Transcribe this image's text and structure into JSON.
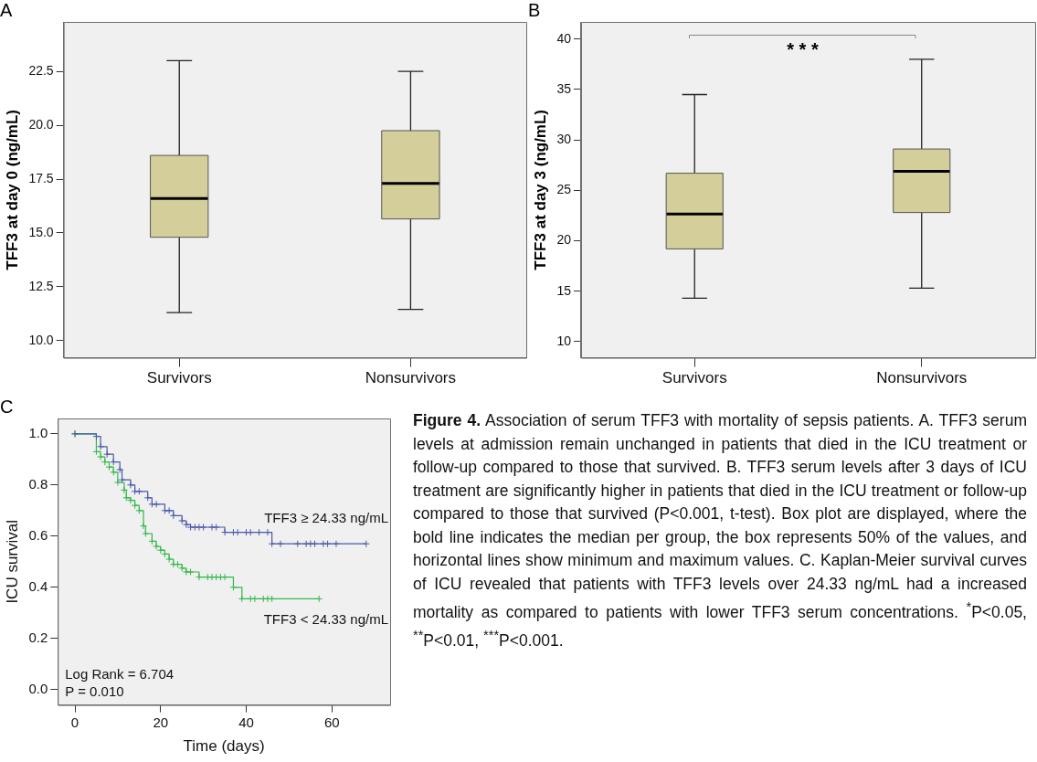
{
  "chart_data": [
    {
      "type": "box",
      "title": "A",
      "ylabel": "TFF3 at day 0 (ng/mL)",
      "categories": [
        "Survivors",
        "Nonsurvivors"
      ],
      "color": "#d4cf9a",
      "ylim": [
        9.2,
        24.8
      ],
      "yticks": [
        {
          "value": 10,
          "label": "10.0"
        },
        {
          "value": 12.5,
          "label": "12.5"
        },
        {
          "value": 15,
          "label": "15.0"
        },
        {
          "value": 17.5,
          "label": "17.5"
        },
        {
          "value": 20,
          "label": "20.0"
        },
        {
          "value": 22.5,
          "label": "22.5"
        }
      ],
      "boxes": [
        {
          "low": 11.3,
          "q1": 14.8,
          "median": 16.6,
          "q3": 18.6,
          "high": 23.0
        },
        {
          "low": 11.45,
          "q1": 15.65,
          "median": 17.3,
          "q3": 19.75,
          "high": 22.5
        }
      ]
    },
    {
      "type": "box",
      "title": "B",
      "ylabel": "TFF3 at day 3 (ng/mL)",
      "categories": [
        "Survivors",
        "Nonsurvivors"
      ],
      "color": "#d4cf9a",
      "ylim": [
        8.4,
        41.7
      ],
      "yticks": [
        10,
        15,
        20,
        25,
        30,
        35,
        40
      ],
      "boxes": [
        {
          "low": 14.3,
          "q1": 19.2,
          "median": 22.65,
          "q3": 26.7,
          "high": 34.5
        },
        {
          "low": 15.3,
          "q1": 22.8,
          "median": 26.9,
          "q3": 29.1,
          "high": 38.0
        }
      ],
      "annotations": [
        "* * *"
      ]
    },
    {
      "type": "step",
      "title": "C",
      "xlabel": "Time (days)",
      "ylabel": "ICU survival",
      "xlim": [
        -4,
        73.6
      ],
      "ylim": [
        -0.06,
        1.06
      ],
      "xticks": [
        0,
        20,
        40,
        60
      ],
      "yticks": [
        {
          "value": 0,
          "label": "0.0"
        },
        {
          "value": 0.2,
          "label": "0.2"
        },
        {
          "value": 0.4,
          "label": "0.4"
        },
        {
          "value": 0.6,
          "label": "0.6"
        },
        {
          "value": 0.8,
          "label": "0.8"
        },
        {
          "value": 1,
          "label": "1.0"
        }
      ],
      "marker": "cross",
      "legend": false,
      "series": [
        {
          "name": "TFF3 ≥ 24.33 ng/mL",
          "color": "#4a5aa8",
          "x": [
            0,
            5,
            6,
            7.5,
            9,
            10.5,
            11,
            13,
            14,
            15,
            17,
            18,
            19,
            21,
            22,
            23,
            25,
            26,
            27,
            28,
            29,
            30,
            32,
            33,
            35,
            37,
            38,
            40,
            41,
            43,
            45,
            46,
            48,
            52,
            54,
            55,
            56,
            58,
            59,
            61,
            68
          ],
          "values": [
            1,
            0.99,
            0.95,
            0.92,
            0.89,
            0.86,
            0.82,
            0.8,
            0.775,
            0.775,
            0.75,
            0.725,
            0.725,
            0.7,
            0.7,
            0.68,
            0.66,
            0.645,
            0.635,
            0.635,
            0.635,
            0.635,
            0.635,
            0.635,
            0.615,
            0.615,
            0.615,
            0.615,
            0.615,
            0.615,
            0.615,
            0.57,
            0.57,
            0.57,
            0.57,
            0.57,
            0.57,
            0.57,
            0.57,
            0.57,
            0.57
          ]
        },
        {
          "name": "TFF3 < 24.33 ng/mL",
          "color": "#33b84a",
          "x": [
            0,
            5,
            6,
            7,
            8,
            9,
            10,
            11.5,
            12,
            13,
            14,
            15,
            16,
            16.5,
            18,
            19,
            20,
            21,
            22,
            23,
            24,
            25,
            26,
            27,
            29,
            31,
            32,
            33,
            34,
            35,
            37,
            39,
            41,
            42,
            44,
            45,
            46,
            57
          ],
          "values": [
            1,
            0.93,
            0.91,
            0.89,
            0.87,
            0.85,
            0.81,
            0.78,
            0.75,
            0.74,
            0.72,
            0.7,
            0.64,
            0.61,
            0.58,
            0.56,
            0.545,
            0.53,
            0.51,
            0.49,
            0.49,
            0.475,
            0.46,
            0.46,
            0.44,
            0.44,
            0.44,
            0.44,
            0.44,
            0.44,
            0.4,
            0.355,
            0.355,
            0.355,
            0.355,
            0.355,
            0.355,
            0.355
          ]
        }
      ],
      "annotations": [
        "Log Rank = 6.704",
        "P = 0.010"
      ]
    },
    {
      "type": "other",
      "title": "Figure 4.",
      "annotations": [
        "Association of serum TFF3 with mortality of sepsis patients. A. TFF3 serum levels at admission remain unchanged in patients that died in the ICU treatment or follow-up compared to those that survived. B. TFF3 serum levels after 3 days of ICU treatment are significantly higher in patients that died in the ICU treatment or follow-up compared to those that survived (P<0.001, t-test). Box plot are displayed, where the bold line indicates the median per group, the box represents 50% of the values, and horizontal lines show minimum and maximum values. C. Kaplan-Meier survival curves of ICU revealed that patients with TFF3 levels over 24.33 ng/mL had a increased mortality as compared to patients with lower TFF3 serum concentrations. $^{*}$P<0.05, $^{**}$P<0.01, $^{***}$P<0.001."
      ]
    }
  ]
}
